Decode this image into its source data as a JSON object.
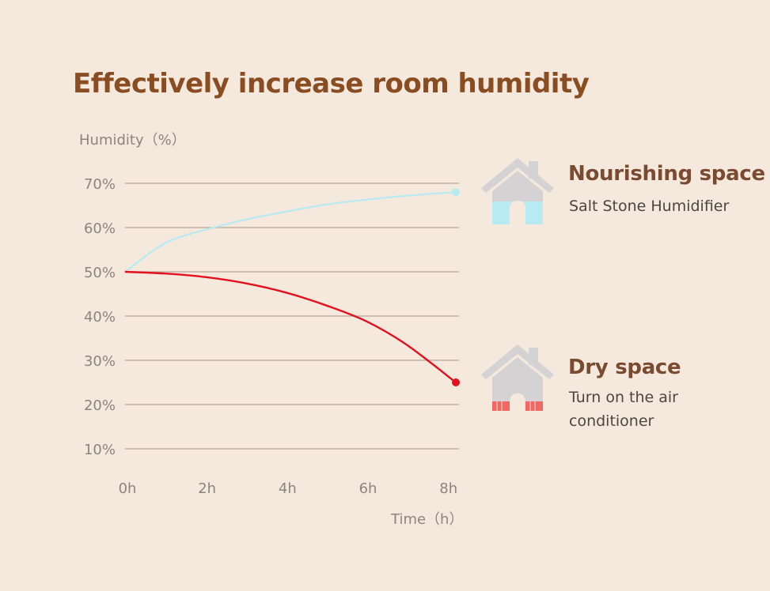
{
  "chart_data": {
    "type": "line",
    "title": "Effectively increase room humidity",
    "ylabel": "Humidity（%）",
    "xlabel": "Time（h）",
    "x_ticks": [
      "0h",
      "2h",
      "4h",
      "6h",
      "8h"
    ],
    "y_ticks": [
      "10%",
      "20%",
      "30%",
      "40%",
      "50%",
      "60%",
      "70%"
    ],
    "xlim": [
      0,
      8.3
    ],
    "ylim": [
      10,
      70
    ],
    "grid": true,
    "series": [
      {
        "name": "Nourishing space",
        "subtitle": "Salt Stone Humidifier",
        "color": "#b8eaf2",
        "x": [
          0,
          1,
          2,
          3,
          4,
          5,
          6,
          7,
          8.3
        ],
        "y": [
          50,
          56.5,
          59.5,
          61.8,
          63.6,
          65.2,
          66.3,
          67.2,
          68
        ]
      },
      {
        "name": "Dry space",
        "subtitle": "Turn on the air conditioner",
        "color": "#e3101e",
        "x": [
          0,
          1,
          2,
          3,
          4,
          5,
          6,
          7,
          8.3
        ],
        "y": [
          50,
          49.6,
          48.8,
          47.4,
          45.3,
          42.4,
          38.8,
          33.5,
          25
        ]
      }
    ]
  },
  "legend": [
    {
      "icon": "house-humid-icon",
      "title": "Nourishing space",
      "lines": [
        "Salt Stone Humidifier"
      ],
      "fill_color": "#b8eaf2"
    },
    {
      "icon": "house-dry-icon",
      "title": "Dry space",
      "lines": [
        "Turn on the air",
        "conditioner"
      ],
      "fill_color": "#f06763"
    }
  ]
}
